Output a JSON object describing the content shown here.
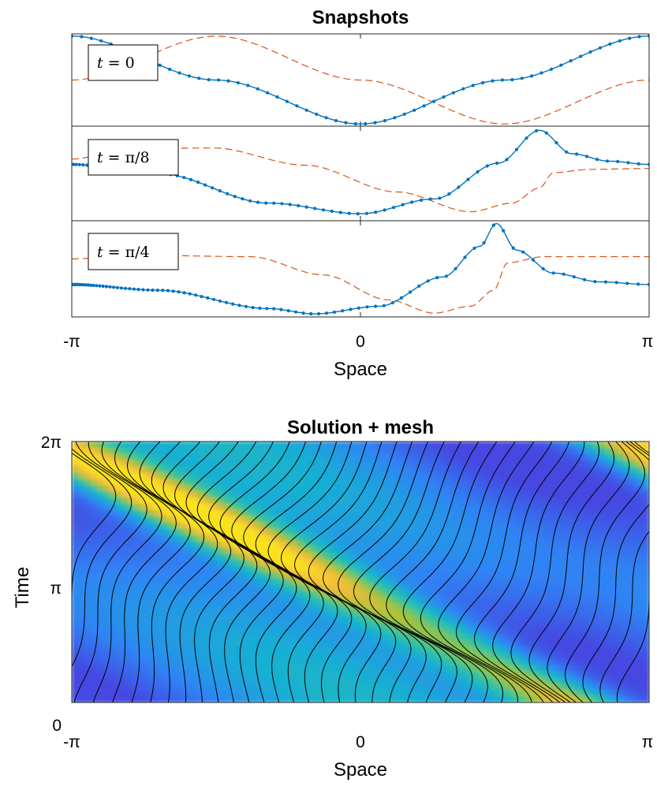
{
  "colors": {
    "solution": "#0072bd",
    "mesh_velocity": "#d95319",
    "frame": "#262626",
    "colormap": [
      "#3e26a8",
      "#4743e0",
      "#2f84f4",
      "#17b0d3",
      "#37c59b",
      "#a8c33a",
      "#f5bb3c",
      "#f9e21e"
    ]
  },
  "chart_data": [
    {
      "type": "line",
      "title": "Snapshots",
      "xlabel": "Space",
      "x_ticks": [
        "-π",
        "0",
        "π"
      ],
      "xlim": [
        -3.1416,
        3.1416
      ],
      "panels": [
        {
          "label": "t = 0",
          "label_parts": {
            "var": "t",
            "value": "0"
          },
          "time": 0,
          "ylim": [
            -1.05,
            1.05
          ],
          "solution_points": 60,
          "series": [
            {
              "role": "solution",
              "style": "solid-dotted",
              "x": [
                -3.1416,
                -1.5708,
                0,
                1.5708,
                3.1416
              ],
              "y": [
                1,
                0,
                -1,
                0,
                1
              ]
            },
            {
              "role": "mesh-velocity",
              "style": "dashed",
              "x": [
                -3.1416,
                -1.5708,
                0,
                1.5708,
                3.1416
              ],
              "y": [
                0,
                1,
                0,
                -1,
                0
              ]
            }
          ]
        },
        {
          "label": "t = π/8",
          "label_parts": {
            "var": "t",
            "value": "π/8"
          },
          "time": 0.3927,
          "ylim": [
            -1.15,
            1.15
          ],
          "solution_points": 75,
          "series": [
            {
              "role": "solution",
              "style": "solid-dotted",
              "x": [
                -3.1416,
                -2.2,
                -1.0,
                0.0,
                0.8,
                1.5,
                1.95,
                2.3,
                2.7,
                3.1416
              ],
              "y": [
                0.22,
                0.0,
                -0.72,
                -0.98,
                -0.62,
                0.25,
                1.05,
                0.48,
                0.3,
                0.22
              ]
            },
            {
              "role": "mesh-velocity",
              "style": "dashed",
              "x": [
                -3.1416,
                -2.5,
                -1.6,
                -0.6,
                0.4,
                1.2,
                1.65,
                1.95,
                2.1,
                2.5,
                3.1416
              ],
              "y": [
                0.35,
                0.6,
                0.62,
                0.2,
                -0.45,
                -0.93,
                -0.72,
                -0.35,
                0.02,
                0.1,
                0.12
              ]
            }
          ]
        },
        {
          "label": "t = π/4",
          "label_parts": {
            "var": "t",
            "value": "π/4"
          },
          "time": 0.7854,
          "ylim": [
            -0.8,
            1.72
          ],
          "solution_points": 90,
          "series": [
            {
              "role": "solution",
              "style": "solid-dotted",
              "x": [
                -3.1416,
                -2.2,
                -1.0,
                -0.5,
                0.2,
                0.9,
                1.3,
                1.48,
                1.7,
                2.1,
                2.6,
                3.1416
              ],
              "y": [
                0.05,
                -0.1,
                -0.58,
                -0.72,
                -0.52,
                0.25,
                1.05,
                1.65,
                0.95,
                0.35,
                0.12,
                0.05
              ]
            },
            {
              "role": "mesh-velocity",
              "style": "dashed",
              "x": [
                -3.1416,
                -2.5,
                -1.2,
                -0.4,
                0.3,
                0.8,
                1.2,
                1.45,
                1.6,
                2.0,
                3.1416
              ],
              "y": [
                0.72,
                0.82,
                0.78,
                0.3,
                -0.35,
                -0.7,
                -0.52,
                -0.1,
                0.62,
                0.78,
                0.78
              ]
            }
          ]
        }
      ]
    },
    {
      "type": "heatmap",
      "title": "Solution + mesh",
      "xlabel": "Space",
      "ylabel": "Time",
      "x_ticks": [
        "-π",
        "0",
        "π"
      ],
      "y_ticks": [
        "0",
        "π",
        "2π"
      ],
      "xlim": [
        -3.1416,
        3.1416
      ],
      "ylim": [
        0,
        6.2832
      ],
      "colormap": "parula",
      "mesh_lines": 40
    }
  ]
}
